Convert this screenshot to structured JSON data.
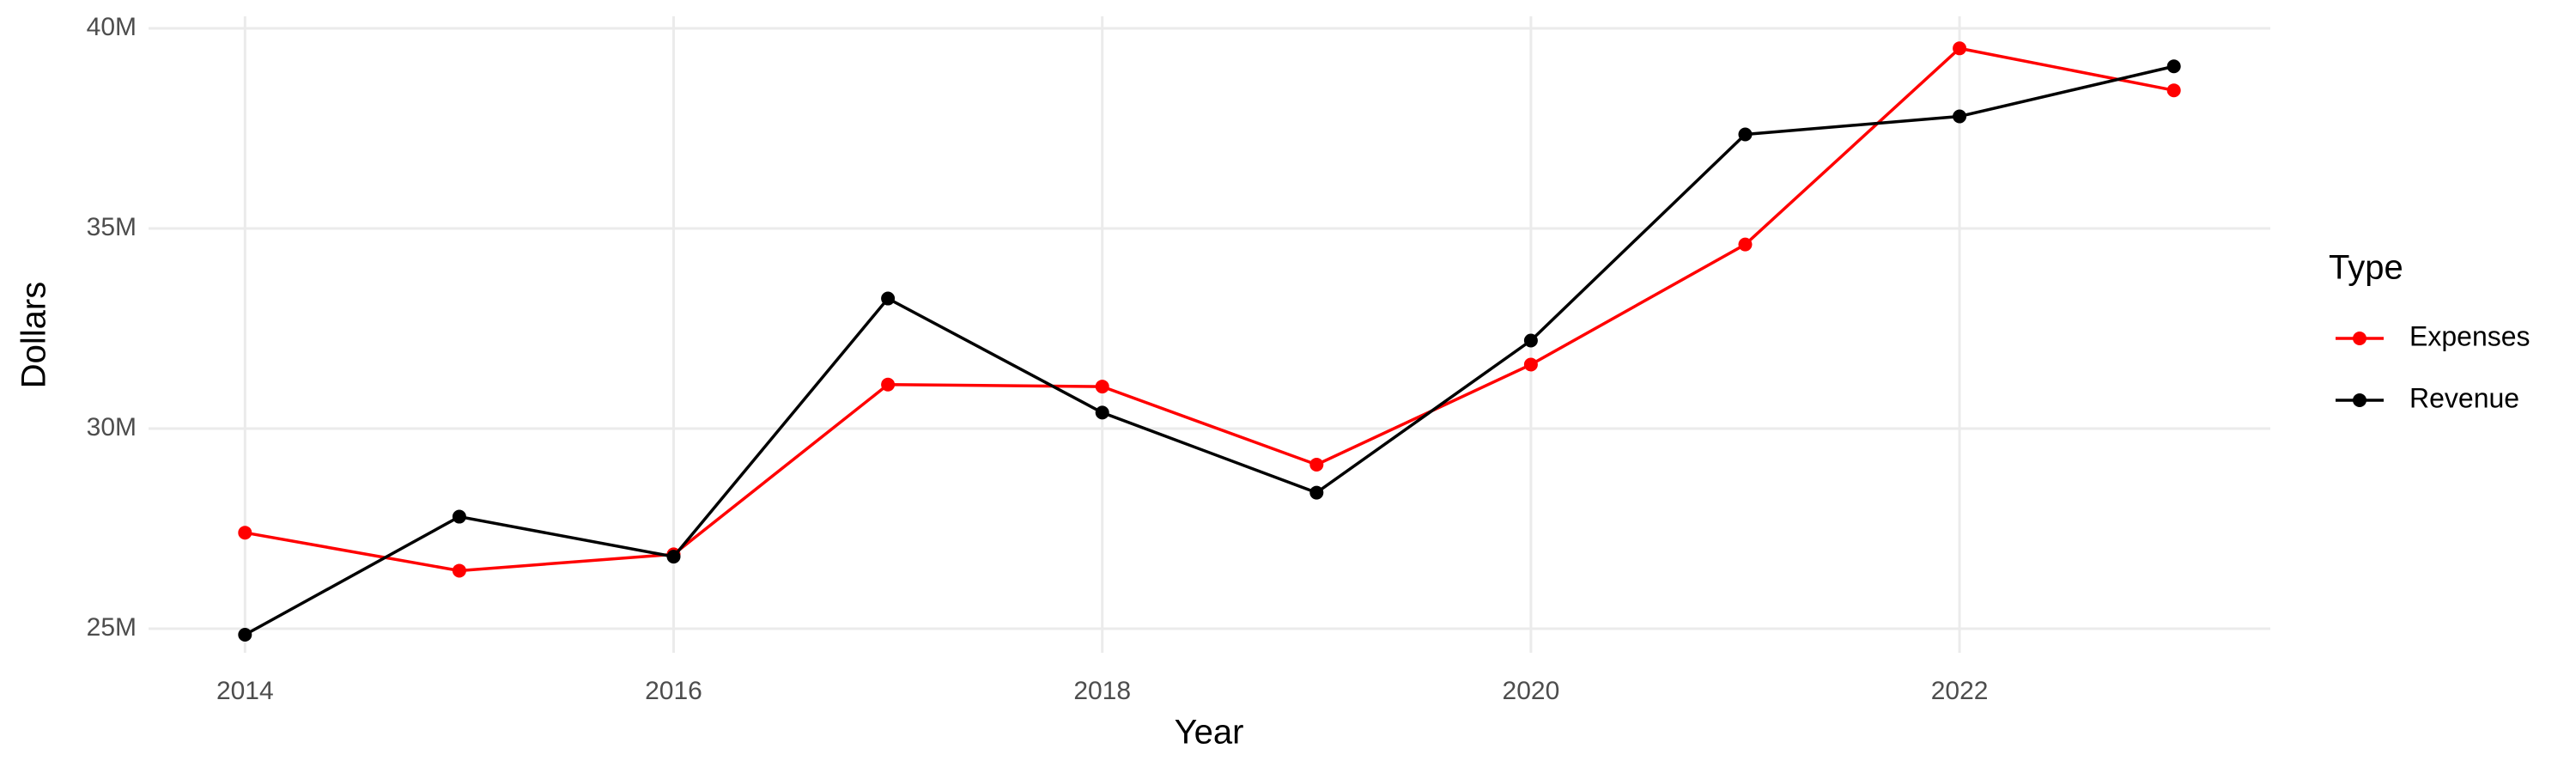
{
  "chart_data": {
    "type": "line",
    "x_label": "Year",
    "y_label": "Dollars",
    "legend_title": "Type",
    "x": [
      2014,
      2015,
      2016,
      2017,
      2018,
      2019,
      2020,
      2021,
      2022,
      2023
    ],
    "series": [
      {
        "name": "Expenses",
        "color": "#ff0000",
        "values": [
          27400000,
          26450000,
          26860000,
          31100000,
          31050000,
          29100000,
          31600000,
          34600000,
          39500000,
          38450000
        ]
      },
      {
        "name": "Revenue",
        "color": "#000000",
        "values": [
          24850000,
          27800000,
          26800000,
          33250000,
          30400000,
          28400000,
          32200000,
          37350000,
          37800000,
          39050000
        ]
      }
    ],
    "xlim": [
      2013.55,
      2023.45
    ],
    "xticks": [
      2014,
      2016,
      2018,
      2020,
      2022
    ],
    "ylim": [
      24400000,
      40300000
    ],
    "yticks": [
      {
        "value": 25000000,
        "label": "25M"
      },
      {
        "value": 30000000,
        "label": "30M"
      },
      {
        "value": 35000000,
        "label": "35M"
      },
      {
        "value": 40000000,
        "label": "40M"
      }
    ],
    "grid": true,
    "legend_position": "right"
  }
}
